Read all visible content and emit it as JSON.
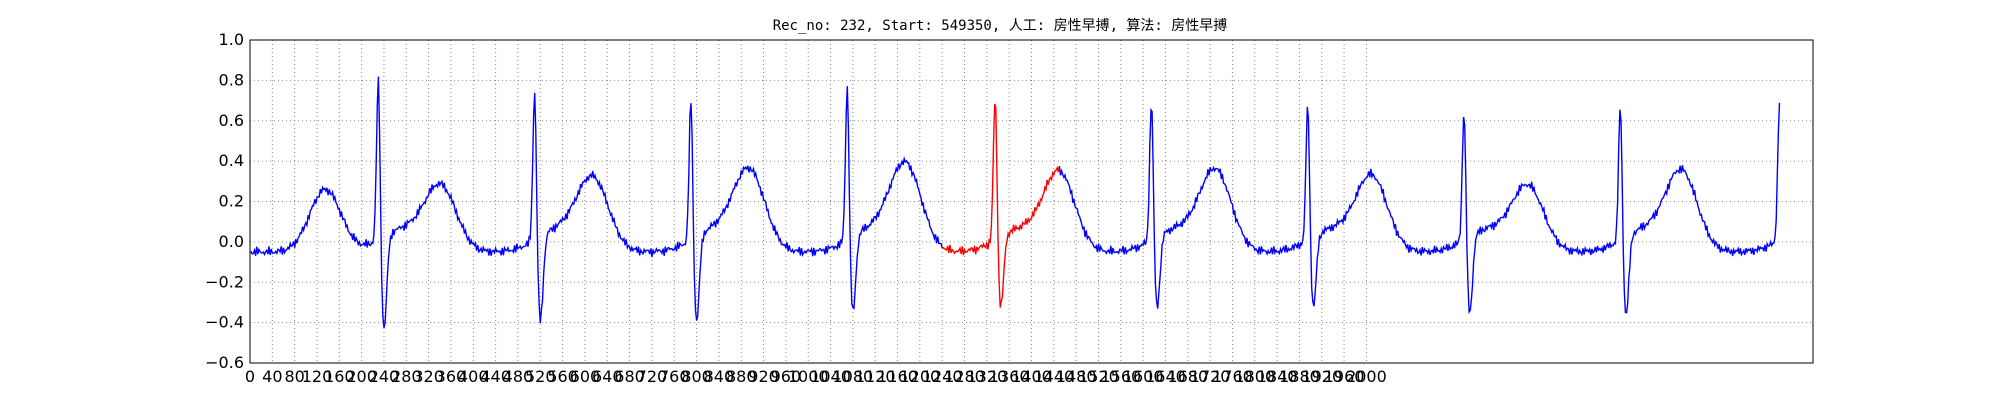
{
  "chart_data": {
    "type": "line",
    "title": "Rec_no: 232, Start: 549350, 人工: 房性早搏, 算法: 房性早搏",
    "xlabel": "",
    "ylabel": "",
    "xlim": [
      0,
      2800
    ],
    "ylim": [
      -0.6,
      1.0
    ],
    "yticks": [
      -0.6,
      -0.4,
      -0.2,
      0.0,
      0.2,
      0.4,
      0.6,
      0.8,
      1.0
    ],
    "ytick_labels": [
      "−0.6",
      "−0.4",
      "−0.2",
      "0.0",
      "0.2",
      "0.4",
      "0.6",
      "0.8",
      "1.0"
    ],
    "xtick_step": 40,
    "xtick_max": 2000,
    "grid": true,
    "grid_style": "dotted",
    "colors": {
      "normal": "#0000ff",
      "highlight": "#ff0000",
      "grid": "#888888"
    },
    "beats": [
      {
        "r_x": 230,
        "r_peak": 0.85,
        "s_min": -0.44,
        "t_peak": 0.26,
        "t_x": 135
      },
      {
        "r_x": 510,
        "r_peak": 0.79,
        "s_min": -0.4,
        "t_peak": 0.26,
        "t_x": 342
      },
      {
        "r_x": 790,
        "r_peak": 0.75,
        "s_min": -0.4,
        "t_peak": 0.29,
        "t_x": 615
      },
      {
        "r_x": 1070,
        "r_peak": 0.81,
        "s_min": -0.36,
        "t_peak": 0.33,
        "t_x": 895
      },
      {
        "r_x": 1335,
        "r_peak": 0.75,
        "s_min": -0.33,
        "t_peak": 0.36,
        "t_x": 1175
      },
      {
        "r_x": 1615,
        "r_peak": 0.73,
        "s_min": -0.33,
        "t_peak": 0.33,
        "t_x": 1450
      },
      {
        "r_x": 1895,
        "r_peak": 0.71,
        "s_min": -0.33,
        "t_peak": 0.34,
        "t_x": 1730
      },
      {
        "r_x": 2175,
        "r_peak": 0.68,
        "s_min": -0.36,
        "t_peak": 0.31,
        "t_x": 2010
      },
      {
        "r_x": 2455,
        "r_peak": 0.71,
        "s_min": -0.37,
        "t_peak": 0.26,
        "t_x": 2290
      },
      {
        "r_x": 2740,
        "r_peak": 0.71,
        "s_min": -0.37,
        "t_peak": 0.33,
        "t_x": 2565
      }
    ],
    "signal_end_x": 2740,
    "highlight_range": [
      1240,
      1450
    ],
    "final_t_x": 2565
  }
}
